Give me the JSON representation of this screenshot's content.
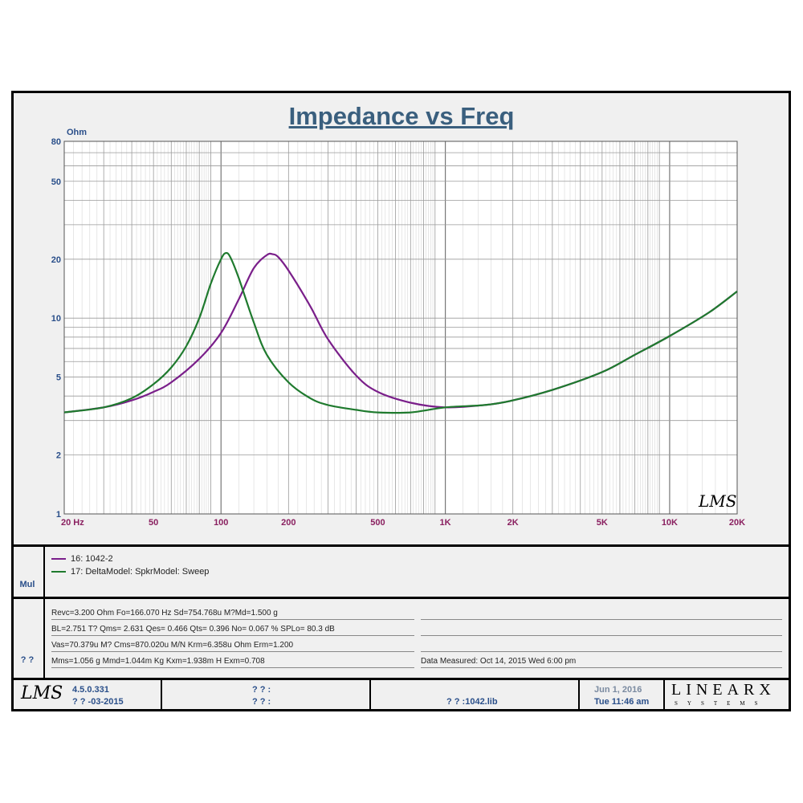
{
  "chart_data": {
    "type": "line",
    "title": "Impedance vs Freq",
    "ylabel": "Ohm",
    "xlabel": "Hz",
    "xscale": "log",
    "yscale": "log",
    "xlim": [
      20,
      20000
    ],
    "ylim": [
      1,
      80
    ],
    "grid": true,
    "x_ticks": [
      20,
      50,
      100,
      200,
      500,
      1000,
      2000,
      5000,
      10000,
      20000
    ],
    "x_tick_labels": [
      "20  Hz",
      "50",
      "100",
      "200",
      "500",
      "1K",
      "2K",
      "5K",
      "10K",
      "20K"
    ],
    "y_ticks": [
      1,
      2,
      5,
      10,
      20,
      50,
      80
    ],
    "y_tick_labels": [
      "1",
      "2",
      "5",
      "10",
      "20",
      "50",
      "80"
    ],
    "series": [
      {
        "name": "16: 1042-2",
        "color": "#7a1f8a",
        "x": [
          20,
          30,
          40,
          50,
          60,
          80,
          100,
          120,
          140,
          160,
          170,
          180,
          200,
          250,
          300,
          400,
          500,
          700,
          1000,
          1500,
          2000,
          3000,
          5000,
          7000,
          10000,
          15000,
          20000
        ],
        "y": [
          3.3,
          3.5,
          3.8,
          4.2,
          4.7,
          6.2,
          8.4,
          12.5,
          18.0,
          21.0,
          21.2,
          20.5,
          17.5,
          11.5,
          7.8,
          5.1,
          4.2,
          3.7,
          3.5,
          3.6,
          3.8,
          4.3,
          5.3,
          6.5,
          8.1,
          10.7,
          13.7
        ]
      },
      {
        "name": "17: DeltaModel: SpkrModel: Sweep",
        "color": "#1f7a2e",
        "x": [
          20,
          30,
          40,
          50,
          60,
          70,
          80,
          90,
          100,
          105,
          110,
          120,
          140,
          160,
          200,
          250,
          300,
          400,
          500,
          700,
          1000,
          1500,
          2000,
          3000,
          5000,
          7000,
          10000,
          15000,
          20000
        ],
        "y": [
          3.3,
          3.5,
          3.9,
          4.6,
          5.6,
          7.2,
          10.0,
          15.0,
          20.0,
          21.5,
          20.5,
          16.0,
          9.5,
          6.5,
          4.7,
          3.9,
          3.6,
          3.4,
          3.3,
          3.3,
          3.5,
          3.6,
          3.8,
          4.3,
          5.3,
          6.5,
          8.1,
          10.7,
          13.7
        ]
      }
    ]
  },
  "watermark": "LMS",
  "params": [
    "Revc=3.200 Ohm  Fo=166.070 Hz  Sd=754.768u M?Md=1.500 g",
    "BL=2.751 T?   Qms= 2.631  Qes= 0.466  Qts= 0.396  No= 0.067 %   SPLo= 80.3 dB",
    "Vas=70.379u M? Cms=870.020u M/N  Krm=6.358u Ohm  Erm=1.200",
    "Mms=1.056 g  Mmd=1.044m Kg  Kxm=1.938m H  Exm=0.708"
  ],
  "data_measured": "Data Measured: Oct 14, 2015  Wed  6:00 pm",
  "side_labels": {
    "legend": "Mul",
    "params": "? ?"
  },
  "footer": {
    "logo": "LMS",
    "version": "4.5.0.331",
    "build_date": "? ? -03-2015",
    "field1": "? ? :",
    "field2": "? ? :",
    "library": "? ? :1042.lib",
    "date": "Jun  1, 2016",
    "time": "Tue 11:46 am",
    "brand": "LINEARX",
    "brand_sub": "SYSTEMS"
  },
  "colors": {
    "title": "#3a5f7e",
    "y_ticks": "#2a4f8a",
    "x_ticks": "#8a2060",
    "grid": "#9a9a9a"
  }
}
